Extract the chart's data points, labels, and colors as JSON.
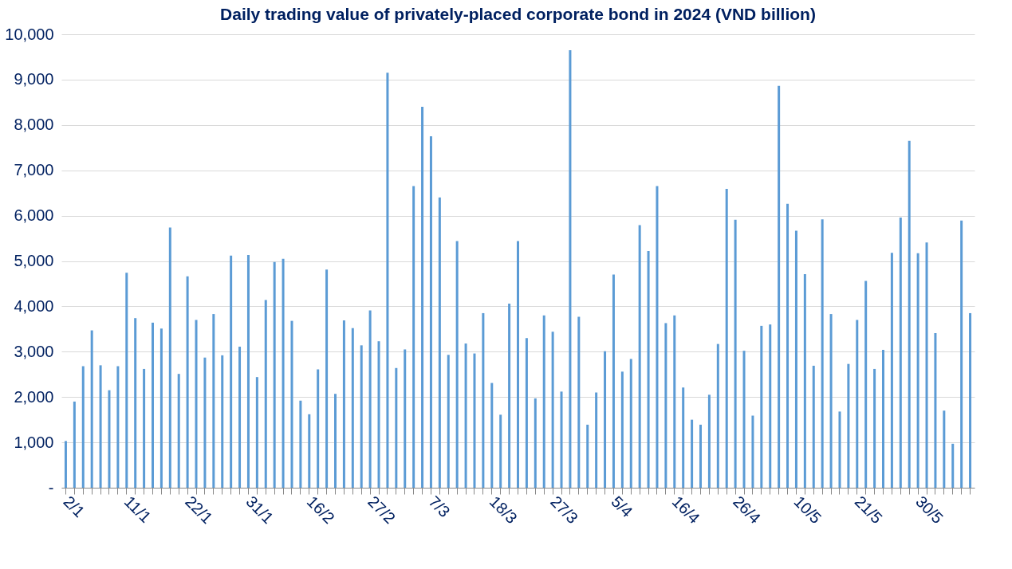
{
  "chart_data": {
    "type": "bar",
    "title": "Daily trading value of privately-placed corporate bond in 2024 (VND billion)",
    "categories": [
      "2/1",
      null,
      null,
      null,
      null,
      null,
      null,
      "11/1",
      null,
      null,
      null,
      null,
      null,
      null,
      "22/1",
      null,
      null,
      null,
      null,
      null,
      null,
      "31/1",
      null,
      null,
      null,
      null,
      null,
      null,
      "16/2",
      null,
      null,
      null,
      null,
      null,
      null,
      "27/2",
      null,
      null,
      null,
      null,
      null,
      null,
      "7/3",
      null,
      null,
      null,
      null,
      null,
      null,
      "18/3",
      null,
      null,
      null,
      null,
      null,
      null,
      "27/3",
      null,
      null,
      null,
      null,
      null,
      null,
      "5/4",
      null,
      null,
      null,
      null,
      null,
      null,
      "16/4",
      null,
      null,
      null,
      null,
      null,
      null,
      "26/4",
      null,
      null,
      null,
      null,
      null,
      null,
      "10/5",
      null,
      null,
      null,
      null,
      null,
      null,
      "21/5",
      null,
      null,
      null,
      null,
      null,
      null,
      "30/5",
      null,
      null,
      null,
      null,
      null,
      null
    ],
    "values": [
      1030,
      1900,
      2680,
      3470,
      2700,
      2150,
      2680,
      4740,
      3740,
      2620,
      3640,
      3510,
      5740,
      2510,
      4660,
      3700,
      2870,
      3830,
      2920,
      5120,
      3110,
      5130,
      2440,
      4140,
      4980,
      5050,
      3680,
      1920,
      1620,
      2610,
      4810,
      2070,
      3690,
      3520,
      3140,
      3910,
      3230,
      9150,
      2640,
      3050,
      6650,
      8400,
      7750,
      6400,
      2930,
      5440,
      3180,
      2960,
      3850,
      2310,
      1610,
      4060,
      5440,
      3300,
      1970,
      3800,
      3440,
      2120,
      9650,
      3770,
      1390,
      2100,
      3010,
      4700,
      2560,
      2840,
      5790,
      5220,
      6650,
      3630,
      3800,
      2210,
      1500,
      1390,
      2050,
      3170,
      6590,
      5910,
      3020,
      1590,
      3570,
      3600,
      8860,
      6260,
      5670,
      4710,
      2690,
      5920,
      3830,
      1680,
      2730,
      3700,
      4560,
      2620,
      3040,
      5180,
      5960,
      7650,
      5170,
      5410,
      3410,
      1700,
      970,
      5890,
      3850
    ],
    "color": "#5b9bd5",
    "ylim": [
      0,
      10000
    ],
    "yticks": [
      {
        "value": 0,
        "label": "-"
      },
      {
        "value": 1000,
        "label": "1,000"
      },
      {
        "value": 2000,
        "label": "2,000"
      },
      {
        "value": 3000,
        "label": "3,000"
      },
      {
        "value": 4000,
        "label": "4,000"
      },
      {
        "value": 5000,
        "label": "5,000"
      },
      {
        "value": 6000,
        "label": "6,000"
      },
      {
        "value": 7000,
        "label": "7,000"
      },
      {
        "value": 8000,
        "label": "8,000"
      },
      {
        "value": 9000,
        "label": "9,000"
      },
      {
        "value": 10000,
        "label": "10,000"
      }
    ],
    "grid": "y"
  }
}
